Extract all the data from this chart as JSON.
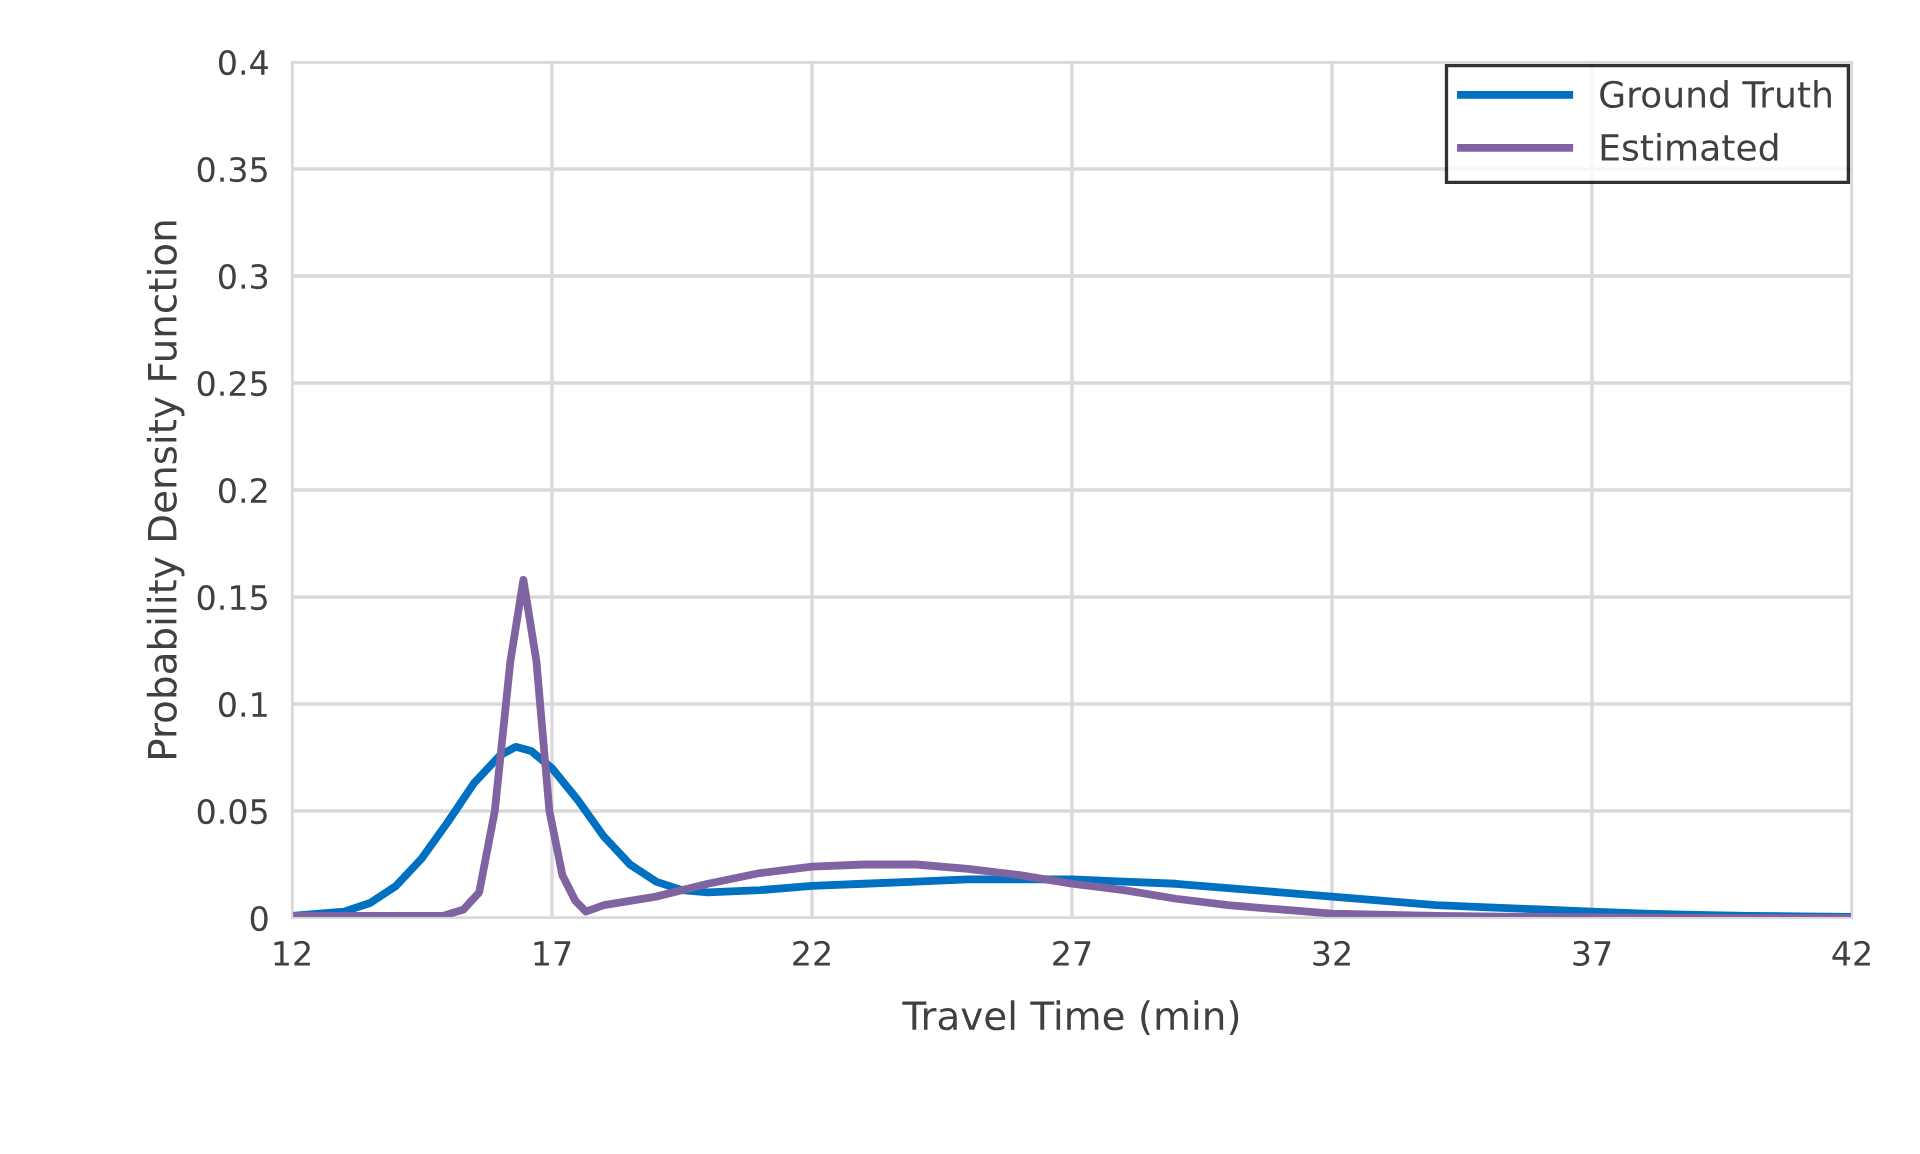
{
  "chart_data": {
    "type": "line",
    "xlabel": "Travel Time (min)",
    "ylabel": "Probability Density Function",
    "xlim": [
      12,
      42
    ],
    "xticks": [
      12,
      17,
      22,
      27,
      32,
      37,
      42
    ],
    "ylim": [
      0,
      0.4
    ],
    "yticks": [
      0,
      0.05,
      0.1,
      0.15,
      0.2,
      0.25,
      0.3,
      0.35,
      0.4
    ],
    "grid": true,
    "legend": "top right",
    "marker": "none",
    "line_style": "solid",
    "series": [
      {
        "name": "Ground Truth",
        "color": "#0070c0",
        "x": [
          12,
          13,
          13.5,
          14,
          14.5,
          15,
          15.5,
          16,
          16.3,
          16.6,
          17,
          17.5,
          18,
          18.5,
          19,
          19.5,
          20,
          21,
          22,
          23,
          24,
          25,
          26,
          27,
          28,
          29,
          30,
          31,
          32,
          33,
          34,
          35,
          36,
          37,
          38,
          39,
          40,
          41,
          42
        ],
        "values": [
          0.001,
          0.003,
          0.007,
          0.015,
          0.028,
          0.045,
          0.063,
          0.076,
          0.08,
          0.078,
          0.07,
          0.055,
          0.038,
          0.025,
          0.017,
          0.013,
          0.012,
          0.013,
          0.015,
          0.016,
          0.017,
          0.018,
          0.018,
          0.018,
          0.017,
          0.016,
          0.014,
          0.012,
          0.01,
          0.008,
          0.006,
          0.005,
          0.004,
          0.003,
          0.002,
          0.0015,
          0.001,
          0.0007,
          0.0005
        ]
      },
      {
        "name": "Estimated",
        "color": "#8064a2",
        "x": [
          12,
          13,
          14,
          14.9,
          15.3,
          15.6,
          15.9,
          16.2,
          16.45,
          16.7,
          16.95,
          17.2,
          17.45,
          17.65,
          18,
          19,
          20,
          21,
          22,
          23,
          24,
          25,
          26,
          27,
          28,
          29,
          30,
          31,
          32,
          34,
          36,
          38,
          40,
          42
        ],
        "values": [
          0.001,
          0.001,
          0.001,
          0.001,
          0.004,
          0.012,
          0.05,
          0.12,
          0.158,
          0.12,
          0.05,
          0.02,
          0.008,
          0.003,
          0.006,
          0.01,
          0.016,
          0.021,
          0.024,
          0.025,
          0.025,
          0.023,
          0.02,
          0.016,
          0.013,
          0.009,
          0.006,
          0.004,
          0.002,
          0.001,
          0.0005,
          0.0002,
          0.0001,
          0
        ]
      }
    ]
  }
}
